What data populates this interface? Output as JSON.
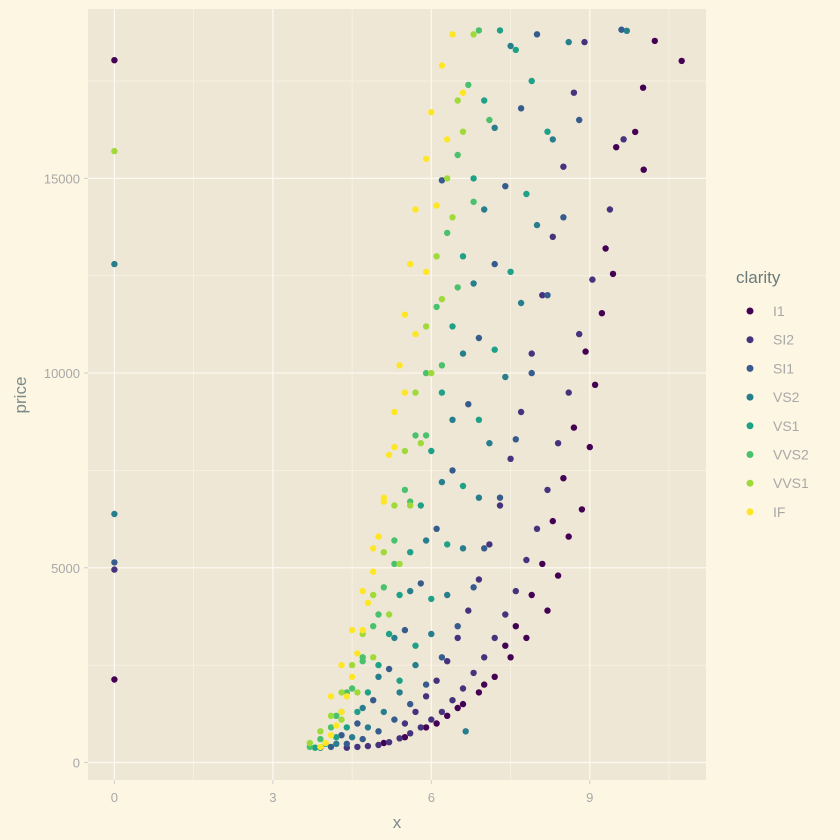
{
  "chart_data": {
    "type": "scatter",
    "title": "",
    "xlabel": "x",
    "ylabel": "price",
    "xlim": [
      -0.5,
      11.2
    ],
    "ylim": [
      -450,
      19350
    ],
    "x_ticks": [
      0,
      3,
      6,
      9
    ],
    "x_tick_labels": [
      "0",
      "3",
      "6",
      "9"
    ],
    "y_ticks": [
      0,
      5000,
      10000,
      15000
    ],
    "y_tick_labels": [
      "0",
      "5000",
      "10000",
      "15000"
    ],
    "grid": true,
    "legend": {
      "title": "clarity",
      "placement": "right"
    },
    "colors": {
      "I1": "#440154",
      "SI2": "#46337e",
      "SI1": "#365c8d",
      "VS2": "#277f8e",
      "VS1": "#1fa187",
      "VVS2": "#4ac16d",
      "VVS1": "#9fda3a",
      "IF": "#fde725"
    },
    "series": [
      {
        "name": "I1",
        "points": [
          [
            0,
            18034
          ],
          [
            0,
            2130
          ],
          [
            10.74,
            18018
          ],
          [
            10.23,
            18531
          ],
          [
            10.01,
            17329
          ],
          [
            9.86,
            16193
          ],
          [
            10.02,
            15223
          ],
          [
            9.44,
            12546
          ],
          [
            9.23,
            11537
          ],
          [
            8.92,
            10551
          ],
          [
            9.0,
            8100
          ],
          [
            8.85,
            6500
          ],
          [
            8.6,
            5800
          ],
          [
            8.4,
            4800
          ],
          [
            8.2,
            3900
          ],
          [
            7.8,
            3200
          ],
          [
            7.5,
            2700
          ],
          [
            7.2,
            2200
          ],
          [
            6.9,
            1800
          ],
          [
            6.6,
            1500
          ],
          [
            6.3,
            1200
          ],
          [
            5.9,
            900
          ],
          [
            5.5,
            650
          ],
          [
            5.1,
            500
          ],
          [
            8.7,
            8600
          ],
          [
            8.5,
            7300
          ],
          [
            8.3,
            6200
          ],
          [
            8.1,
            5100
          ],
          [
            7.9,
            4300
          ],
          [
            7.6,
            3500
          ],
          [
            7.4,
            3000
          ],
          [
            7.0,
            2000
          ],
          [
            6.5,
            1400
          ],
          [
            6.1,
            1000
          ],
          [
            9.3,
            13200
          ],
          [
            9.5,
            15800
          ],
          [
            9.1,
            9700
          ]
        ]
      },
      {
        "name": "SI2",
        "points": [
          [
            0,
            4954
          ],
          [
            9.64,
            16003
          ],
          [
            9.38,
            14200
          ],
          [
            9.05,
            12400
          ],
          [
            8.8,
            11000
          ],
          [
            8.6,
            9500
          ],
          [
            8.4,
            8200
          ],
          [
            8.2,
            7000
          ],
          [
            8.0,
            6000
          ],
          [
            7.8,
            5200
          ],
          [
            7.6,
            4400
          ],
          [
            7.4,
            3800
          ],
          [
            7.2,
            3200
          ],
          [
            7.0,
            2700
          ],
          [
            6.8,
            2300
          ],
          [
            6.6,
            1900
          ],
          [
            6.4,
            1600
          ],
          [
            6.2,
            1300
          ],
          [
            6.0,
            1100
          ],
          [
            5.8,
            900
          ],
          [
            5.6,
            750
          ],
          [
            5.4,
            620
          ],
          [
            5.2,
            520
          ],
          [
            5.0,
            450
          ],
          [
            4.8,
            420
          ],
          [
            4.6,
            400
          ],
          [
            4.4,
            380
          ],
          [
            8.9,
            18500
          ],
          [
            8.7,
            17200
          ],
          [
            8.5,
            15300
          ],
          [
            8.3,
            13500
          ],
          [
            8.1,
            12000
          ],
          [
            7.9,
            10500
          ],
          [
            7.7,
            9000
          ],
          [
            7.5,
            7800
          ],
          [
            7.3,
            6600
          ],
          [
            7.1,
            5600
          ],
          [
            6.9,
            4700
          ],
          [
            6.7,
            3900
          ],
          [
            6.5,
            3200
          ],
          [
            6.3,
            2600
          ],
          [
            6.1,
            2100
          ],
          [
            5.9,
            1700
          ],
          [
            5.7,
            1300
          ],
          [
            5.5,
            1000
          ]
        ]
      },
      {
        "name": "SI1",
        "points": [
          [
            0,
            5139
          ],
          [
            6.2,
            14950
          ],
          [
            9.6,
            18818
          ],
          [
            8.8,
            16500
          ],
          [
            8.5,
            14000
          ],
          [
            8.2,
            12000
          ],
          [
            7.9,
            10000
          ],
          [
            7.6,
            8300
          ],
          [
            7.3,
            6800
          ],
          [
            7.0,
            5500
          ],
          [
            6.8,
            4500
          ],
          [
            6.5,
            3500
          ],
          [
            6.2,
            2700
          ],
          [
            5.9,
            2000
          ],
          [
            5.6,
            1500
          ],
          [
            5.3,
            1100
          ],
          [
            5.0,
            800
          ],
          [
            4.7,
            600
          ],
          [
            4.4,
            480
          ],
          [
            4.1,
            400
          ],
          [
            8.0,
            18700
          ],
          [
            7.7,
            16800
          ],
          [
            7.4,
            14800
          ],
          [
            7.2,
            12800
          ],
          [
            6.9,
            10900
          ],
          [
            6.7,
            9200
          ],
          [
            6.4,
            7500
          ],
          [
            6.1,
            6000
          ],
          [
            5.8,
            4600
          ],
          [
            5.5,
            3400
          ],
          [
            5.2,
            2400
          ],
          [
            4.9,
            1600
          ],
          [
            4.6,
            1000
          ],
          [
            4.3,
            700
          ]
        ]
      },
      {
        "name": "VS2",
        "points": [
          [
            0,
            12800
          ],
          [
            0,
            6380
          ],
          [
            6.65,
            800
          ],
          [
            9.7,
            18790
          ],
          [
            8.6,
            18500
          ],
          [
            8.3,
            16000
          ],
          [
            8.0,
            13800
          ],
          [
            7.7,
            11800
          ],
          [
            7.4,
            9900
          ],
          [
            7.1,
            8200
          ],
          [
            6.9,
            6800
          ],
          [
            6.6,
            5500
          ],
          [
            6.3,
            4300
          ],
          [
            6.0,
            3300
          ],
          [
            5.7,
            2500
          ],
          [
            5.4,
            1800
          ],
          [
            5.1,
            1300
          ],
          [
            4.8,
            900
          ],
          [
            4.5,
            650
          ],
          [
            4.2,
            480
          ],
          [
            3.9,
            380
          ],
          [
            7.5,
            18400
          ],
          [
            7.2,
            16300
          ],
          [
            7.0,
            14200
          ],
          [
            6.8,
            12300
          ],
          [
            6.6,
            10500
          ],
          [
            6.4,
            8800
          ],
          [
            6.2,
            7200
          ],
          [
            5.9,
            5700
          ],
          [
            5.6,
            4400
          ],
          [
            5.3,
            3200
          ],
          [
            5.0,
            2200
          ],
          [
            4.7,
            1400
          ]
        ]
      },
      {
        "name": "VS1",
        "points": [
          [
            7.3,
            18800
          ],
          [
            7.0,
            17000
          ],
          [
            6.8,
            15000
          ],
          [
            6.6,
            13000
          ],
          [
            6.4,
            11200
          ],
          [
            6.2,
            9500
          ],
          [
            6.0,
            8000
          ],
          [
            5.8,
            6600
          ],
          [
            5.6,
            5400
          ],
          [
            5.4,
            4300
          ],
          [
            5.2,
            3300
          ],
          [
            5.0,
            2500
          ],
          [
            4.8,
            1800
          ],
          [
            4.6,
            1300
          ],
          [
            4.4,
            900
          ],
          [
            4.2,
            650
          ],
          [
            4.0,
            480
          ],
          [
            3.8,
            380
          ],
          [
            7.6,
            18300
          ],
          [
            7.9,
            17500
          ],
          [
            8.2,
            16200
          ],
          [
            7.8,
            14600
          ],
          [
            7.5,
            12600
          ],
          [
            7.2,
            10600
          ],
          [
            6.9,
            8800
          ],
          [
            6.6,
            7100
          ],
          [
            6.3,
            5600
          ],
          [
            6.0,
            4200
          ],
          [
            5.7,
            3000
          ],
          [
            5.4,
            2100
          ]
        ]
      },
      {
        "name": "VVS2",
        "points": [
          [
            6.9,
            18800
          ],
          [
            6.7,
            17400
          ],
          [
            6.5,
            15600
          ],
          [
            6.3,
            13600
          ],
          [
            6.1,
            11700
          ],
          [
            5.9,
            10000
          ],
          [
            5.7,
            8400
          ],
          [
            5.5,
            7000
          ],
          [
            5.3,
            5700
          ],
          [
            5.1,
            4500
          ],
          [
            4.9,
            3500
          ],
          [
            4.7,
            2600
          ],
          [
            4.5,
            1900
          ],
          [
            4.3,
            1300
          ],
          [
            4.1,
            900
          ],
          [
            3.9,
            600
          ],
          [
            3.7,
            400
          ],
          [
            7.1,
            16500
          ],
          [
            6.8,
            14400
          ],
          [
            6.5,
            12200
          ],
          [
            6.2,
            10200
          ],
          [
            5.9,
            8400
          ],
          [
            5.6,
            6700
          ],
          [
            5.3,
            5100
          ],
          [
            5.0,
            3800
          ],
          [
            4.7,
            2700
          ],
          [
            4.4,
            1800
          ],
          [
            4.2,
            1200
          ]
        ]
      },
      {
        "name": "VVS1",
        "points": [
          [
            0,
            15700
          ],
          [
            6.8,
            18700
          ],
          [
            6.5,
            17000
          ],
          [
            6.3,
            15000
          ],
          [
            6.1,
            13000
          ],
          [
            5.9,
            11200
          ],
          [
            5.7,
            9500
          ],
          [
            5.5,
            8000
          ],
          [
            5.3,
            6600
          ],
          [
            5.1,
            5400
          ],
          [
            4.9,
            4300
          ],
          [
            4.7,
            3300
          ],
          [
            4.5,
            2500
          ],
          [
            4.3,
            1800
          ],
          [
            4.1,
            1200
          ],
          [
            3.9,
            800
          ],
          [
            3.7,
            500
          ],
          [
            6.6,
            16200
          ],
          [
            6.4,
            14000
          ],
          [
            6.2,
            11900
          ],
          [
            6.0,
            10000
          ],
          [
            5.8,
            8200
          ],
          [
            5.6,
            6600
          ],
          [
            5.4,
            5100
          ],
          [
            5.2,
            3800
          ],
          [
            4.9,
            2700
          ],
          [
            4.6,
            1800
          ],
          [
            4.3,
            1100
          ]
        ]
      },
      {
        "name": "IF",
        "points": [
          [
            6.4,
            18700
          ],
          [
            6.2,
            17900
          ],
          [
            6.0,
            16700
          ],
          [
            5.9,
            15500
          ],
          [
            5.7,
            14200
          ],
          [
            5.6,
            12800
          ],
          [
            5.5,
            11500
          ],
          [
            5.4,
            10200
          ],
          [
            5.3,
            9000
          ],
          [
            5.2,
            7900
          ],
          [
            5.1,
            6800
          ],
          [
            5.0,
            5800
          ],
          [
            4.9,
            4900
          ],
          [
            4.8,
            4100
          ],
          [
            4.7,
            3400
          ],
          [
            4.6,
            2800
          ],
          [
            4.5,
            2200
          ],
          [
            4.4,
            1700
          ],
          [
            4.3,
            1300
          ],
          [
            4.2,
            950
          ],
          [
            4.1,
            700
          ],
          [
            4.0,
            500
          ],
          [
            3.9,
            400
          ],
          [
            6.6,
            17200
          ],
          [
            6.3,
            16000
          ],
          [
            6.1,
            14300
          ],
          [
            5.9,
            12600
          ],
          [
            5.7,
            11000
          ],
          [
            5.5,
            9500
          ],
          [
            5.3,
            8100
          ],
          [
            5.1,
            6700
          ],
          [
            4.9,
            5500
          ],
          [
            4.7,
            4400
          ],
          [
            4.5,
            3400
          ],
          [
            4.3,
            2500
          ],
          [
            4.1,
            1700
          ]
        ]
      }
    ]
  }
}
